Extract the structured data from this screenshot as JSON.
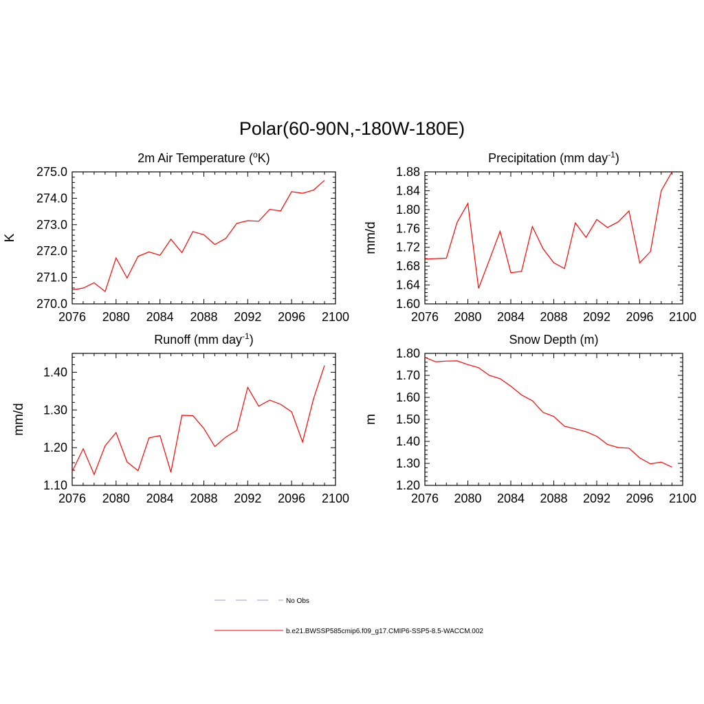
{
  "title": "Polar(60-90N,-180W-180E)",
  "chart_data": [
    {
      "type": "line",
      "title": "2m Air Temperature (",
      "title_sup": "o",
      "title_after": "K)",
      "ylabel": "K",
      "xlim": [
        2076,
        2100
      ],
      "ylim": [
        270.0,
        275.0
      ],
      "xticks": [
        2076,
        2080,
        2084,
        2088,
        2092,
        2096,
        2100
      ],
      "xtick_labels": [
        "2076",
        "2080",
        "2084",
        "2088",
        "2092",
        "2096",
        "2100"
      ],
      "yticks": [
        270.0,
        271.0,
        272.0,
        273.0,
        274.0,
        275.0
      ],
      "ytick_labels": [
        "270.0",
        "271.0",
        "272.0",
        "273.0",
        "274.0",
        "275.0"
      ],
      "series": [
        {
          "x": [
            2076,
            2077,
            2078,
            2079,
            2080,
            2081,
            2082,
            2083,
            2084,
            2085,
            2086,
            2087,
            2088,
            2089,
            2090,
            2091,
            2092,
            2093,
            2094,
            2095,
            2096,
            2097,
            2098,
            2099
          ],
          "y": [
            270.53,
            270.6,
            270.8,
            270.47,
            271.74,
            270.98,
            271.8,
            271.97,
            271.84,
            272.45,
            271.94,
            272.74,
            272.62,
            272.25,
            272.48,
            273.05,
            273.15,
            273.13,
            273.58,
            273.52,
            274.25,
            274.19,
            274.31,
            274.68
          ],
          "color": "#ff0000"
        }
      ]
    },
    {
      "type": "line",
      "title": "Precipitation (mm day",
      "title_sup": "-1",
      "title_after": ")",
      "ylabel": "mm/d",
      "xlim": [
        2076,
        2100
      ],
      "ylim": [
        1.6,
        1.88
      ],
      "xticks": [
        2076,
        2080,
        2084,
        2088,
        2092,
        2096,
        2100
      ],
      "xtick_labels": [
        "2076",
        "2080",
        "2084",
        "2088",
        "2092",
        "2096",
        "2100"
      ],
      "yticks": [
        1.6,
        1.64,
        1.68,
        1.72,
        1.76,
        1.8,
        1.84,
        1.88
      ],
      "ytick_labels": [
        "1.60",
        "1.64",
        "1.68",
        "1.72",
        "1.76",
        "1.80",
        "1.84",
        "1.88"
      ],
      "series": [
        {
          "x": [
            2076,
            2077,
            2078,
            2079,
            2080,
            2081,
            2082,
            2083,
            2084,
            2085,
            2086,
            2087,
            2088,
            2089,
            2090,
            2091,
            2092,
            2093,
            2094,
            2095,
            2096,
            2097,
            2098,
            2099
          ],
          "y": [
            1.695,
            1.696,
            1.697,
            1.773,
            1.813,
            1.633,
            1.693,
            1.754,
            1.666,
            1.669,
            1.764,
            1.717,
            1.687,
            1.675,
            1.772,
            1.741,
            1.779,
            1.762,
            1.774,
            1.797,
            1.687,
            1.711,
            1.84,
            1.88
          ],
          "color": "#ff0000"
        }
      ]
    },
    {
      "type": "line",
      "title": "Runoff (mm day",
      "title_sup": "-1",
      "title_after": ")",
      "ylabel": "mm/d",
      "xlim": [
        2076,
        2100
      ],
      "ylim": [
        1.1,
        1.45
      ],
      "xticks": [
        2076,
        2080,
        2084,
        2088,
        2092,
        2096,
        2100
      ],
      "xtick_labels": [
        "2076",
        "2080",
        "2084",
        "2088",
        "2092",
        "2096",
        "2100"
      ],
      "yticks": [
        1.1,
        1.2,
        1.3,
        1.4
      ],
      "ytick_labels": [
        "1.10",
        "1.20",
        "1.30",
        "1.40"
      ],
      "series": [
        {
          "x": [
            2076,
            2077,
            2078,
            2079,
            2080,
            2081,
            2082,
            2083,
            2084,
            2085,
            2086,
            2087,
            2088,
            2089,
            2090,
            2091,
            2092,
            2093,
            2094,
            2095,
            2096,
            2097,
            2098,
            2099
          ],
          "y": [
            1.137,
            1.197,
            1.129,
            1.205,
            1.24,
            1.162,
            1.139,
            1.226,
            1.232,
            1.135,
            1.286,
            1.285,
            1.251,
            1.203,
            1.228,
            1.246,
            1.36,
            1.31,
            1.326,
            1.315,
            1.295,
            1.215,
            1.33,
            1.418
          ],
          "color": "#ff0000"
        }
      ]
    },
    {
      "type": "line",
      "title": "Snow Depth (m)",
      "title_sup": "",
      "title_after": "",
      "ylabel": "m",
      "xlim": [
        2076,
        2100
      ],
      "ylim": [
        1.2,
        1.8
      ],
      "xticks": [
        2076,
        2080,
        2084,
        2088,
        2092,
        2096,
        2100
      ],
      "xtick_labels": [
        "2076",
        "2080",
        "2084",
        "2088",
        "2092",
        "2096",
        "2100"
      ],
      "yticks": [
        1.2,
        1.3,
        1.4,
        1.5,
        1.6,
        1.7,
        1.8
      ],
      "ytick_labels": [
        "1.20",
        "1.30",
        "1.40",
        "1.50",
        "1.60",
        "1.70",
        "1.80"
      ],
      "series": [
        {
          "x": [
            2076,
            2077,
            2078,
            2079,
            2080,
            2081,
            2082,
            2083,
            2084,
            2085,
            2086,
            2087,
            2088,
            2089,
            2090,
            2091,
            2092,
            2093,
            2094,
            2095,
            2096,
            2097,
            2098,
            2099
          ],
          "y": [
            1.782,
            1.762,
            1.765,
            1.766,
            1.749,
            1.735,
            1.7,
            1.685,
            1.651,
            1.611,
            1.585,
            1.532,
            1.513,
            1.469,
            1.457,
            1.444,
            1.423,
            1.386,
            1.372,
            1.369,
            1.325,
            1.298,
            1.306,
            1.283
          ],
          "color": "#ff0000"
        }
      ]
    }
  ],
  "legend": [
    {
      "label": "No Obs",
      "color": "#9999dd",
      "style": "dashed"
    },
    {
      "label": "b.e21.BWSSP585cmip6.f09_g17.CMIP6-SSP5-8.5-WACCM.002",
      "color": "#ff0000",
      "style": "solid"
    }
  ]
}
